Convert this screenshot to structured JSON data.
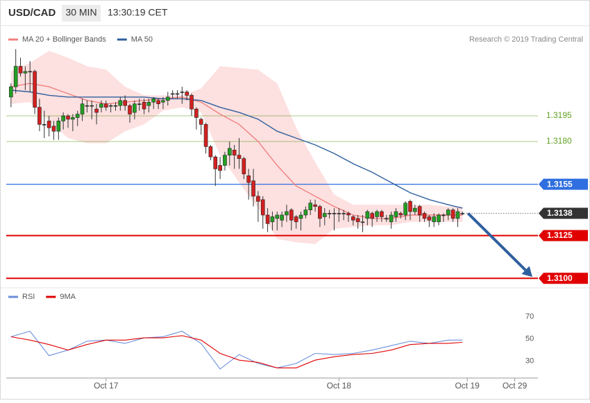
{
  "header": {
    "symbol": "USD/CAD",
    "timeframe": "30 MIN",
    "time": "13:30:19 CET"
  },
  "source": "Research © 2019 Trading Central",
  "chart_data": [
    {
      "type": "candlestick",
      "ylim": [
        1.3094,
        1.3238
      ],
      "up_color": "#22a022",
      "down_color": "#d42020",
      "candles": {
        "x": [
          0,
          1,
          2,
          3,
          4,
          5,
          6,
          7,
          8,
          9,
          10,
          11,
          12,
          13,
          14,
          15,
          16,
          17,
          18,
          19,
          20,
          21,
          22,
          23,
          24,
          25,
          26,
          27,
          28,
          29,
          30,
          31,
          32,
          33,
          34,
          35,
          36,
          37,
          38,
          39,
          40,
          41,
          42,
          43,
          44,
          45,
          46,
          47,
          48,
          49,
          50,
          51,
          52,
          53,
          54,
          55,
          56,
          57,
          58,
          59,
          60,
          61,
          62,
          63,
          64,
          65,
          66,
          67,
          68,
          69,
          70,
          71,
          72,
          73,
          74,
          75,
          76,
          77,
          78,
          79,
          80,
          81,
          82,
          83,
          84,
          85,
          86,
          87,
          88,
          89,
          90,
          91,
          92,
          93,
          94,
          95
        ],
        "open": [
          1.3206,
          1.3212,
          1.3224,
          1.322,
          1.3221,
          1.3221,
          1.32,
          1.319,
          1.3192,
          1.3189,
          1.3186,
          1.3192,
          1.3195,
          1.3193,
          1.3194,
          1.3196,
          1.3201,
          1.3201,
          1.3199,
          1.32,
          1.3202,
          1.3201,
          1.3201,
          1.3201,
          1.3204,
          1.3201,
          1.3197,
          1.3202,
          1.3203,
          1.3201,
          1.3203,
          1.3204,
          1.3203,
          1.3204,
          1.3208,
          1.3208,
          1.3209,
          1.3209,
          1.3207,
          1.3199,
          1.3193,
          1.319,
          1.3177,
          1.3171,
          1.3166,
          1.3166,
          1.3172,
          1.3175,
          1.3172,
          1.317,
          1.316,
          1.3157,
          1.3148,
          1.3146,
          1.3137,
          1.3133,
          1.3135,
          1.3134,
          1.3137,
          1.314,
          1.3136,
          1.3135,
          1.3137,
          1.314,
          1.3143,
          1.3142,
          1.3136,
          1.3138,
          1.3138,
          1.3138,
          1.3138,
          1.3138,
          1.3136,
          1.3135,
          1.3133,
          1.3135,
          1.3138,
          1.3136,
          1.3139,
          1.3135,
          1.3133,
          1.3136,
          1.3138,
          1.3137,
          1.3145,
          1.3139,
          1.3142,
          1.3138,
          1.3136,
          1.3133,
          1.3133,
          1.3137,
          1.3137,
          1.314,
          1.3135,
          1.3138
        ],
        "high": [
          1.3214,
          1.3234,
          1.3229,
          1.3224,
          1.3227,
          1.3222,
          1.3205,
          1.3198,
          1.3195,
          1.3192,
          1.3194,
          1.3197,
          1.3196,
          1.3196,
          1.3198,
          1.3205,
          1.3204,
          1.3204,
          1.3202,
          1.3204,
          1.3204,
          1.3202,
          1.3203,
          1.3206,
          1.3207,
          1.3202,
          1.3204,
          1.3205,
          1.3205,
          1.3205,
          1.3206,
          1.3205,
          1.3206,
          1.3209,
          1.321,
          1.321,
          1.3212,
          1.321,
          1.3208,
          1.32,
          1.3194,
          1.3191,
          1.3178,
          1.3172,
          1.3171,
          1.3174,
          1.318,
          1.3178,
          1.3182,
          1.3171,
          1.3164,
          1.3164,
          1.3151,
          1.3148,
          1.3141,
          1.3139,
          1.3139,
          1.3139,
          1.3143,
          1.3141,
          1.3137,
          1.3139,
          1.3142,
          1.3146,
          1.3146,
          1.3143,
          1.3141,
          1.314,
          1.3141,
          1.3141,
          1.314,
          1.3139,
          1.3137,
          1.3137,
          1.3137,
          1.314,
          1.3139,
          1.314,
          1.314,
          1.3137,
          1.3139,
          1.3141,
          1.3139,
          1.3145,
          1.3146,
          1.3143,
          1.3143,
          1.3139,
          1.3137,
          1.3138,
          1.3138,
          1.3138,
          1.3141,
          1.3141,
          1.3141,
          1.3139
        ],
        "low": [
          1.32,
          1.3208,
          1.3218,
          1.321,
          1.3209,
          1.3196,
          1.3186,
          1.3182,
          1.3183,
          1.3181,
          1.3181,
          1.3187,
          1.3188,
          1.3186,
          1.3189,
          1.3192,
          1.3197,
          1.3193,
          1.319,
          1.3197,
          1.3198,
          1.3197,
          1.3198,
          1.3198,
          1.3198,
          1.3191,
          1.3193,
          1.3198,
          1.3196,
          1.3197,
          1.3199,
          1.3199,
          1.3199,
          1.3201,
          1.3205,
          1.3205,
          1.3202,
          1.3204,
          1.3195,
          1.3187,
          1.3184,
          1.3173,
          1.3169,
          1.3154,
          1.3158,
          1.3163,
          1.3166,
          1.3164,
          1.3164,
          1.3158,
          1.3146,
          1.3142,
          1.3133,
          1.3129,
          1.3127,
          1.3128,
          1.3128,
          1.313,
          1.3133,
          1.3128,
          1.3129,
          1.3128,
          1.3135,
          1.3137,
          1.3139,
          1.313,
          1.3131,
          1.3135,
          1.3128,
          1.3133,
          1.3134,
          1.3133,
          1.3131,
          1.3129,
          1.3127,
          1.3131,
          1.313,
          1.3133,
          1.3133,
          1.3133,
          1.3129,
          1.3133,
          1.3135,
          1.3134,
          1.3134,
          1.3137,
          1.3133,
          1.3133,
          1.313,
          1.313,
          1.3131,
          1.3133,
          1.3134,
          1.3133,
          1.313,
          1.3137
        ],
        "close": [
          1.3212,
          1.3224,
          1.322,
          1.3221,
          1.3221,
          1.32,
          1.319,
          1.319,
          1.3188,
          1.3186,
          1.3192,
          1.3195,
          1.3193,
          1.3194,
          1.3196,
          1.3202,
          1.3201,
          1.3201,
          1.3197,
          1.3202,
          1.32,
          1.3201,
          1.3201,
          1.3204,
          1.3201,
          1.3196,
          1.3202,
          1.3202,
          1.3199,
          1.3203,
          1.3205,
          1.3202,
          1.3204,
          1.3206,
          1.3208,
          1.3208,
          1.3209,
          1.3207,
          1.3199,
          1.3194,
          1.319,
          1.3177,
          1.3171,
          1.3164,
          1.3163,
          1.3172,
          1.3176,
          1.3172,
          1.317,
          1.3161,
          1.3156,
          1.3148,
          1.3145,
          1.3137,
          1.3132,
          1.3136,
          1.3137,
          1.3137,
          1.3139,
          1.3134,
          1.3133,
          1.3137,
          1.314,
          1.3144,
          1.3142,
          1.3135,
          1.3138,
          1.3138,
          1.3138,
          1.3138,
          1.3138,
          1.3137,
          1.3134,
          1.3133,
          1.3133,
          1.3139,
          1.3135,
          1.3139,
          1.3136,
          1.3135,
          1.3137,
          1.3139,
          1.3137,
          1.3144,
          1.3139,
          1.3141,
          1.3137,
          1.3135,
          1.3134,
          1.3136,
          1.3137,
          1.3137,
          1.314,
          1.3135,
          1.3139,
          1.3138
        ]
      },
      "series": [
        {
          "name": "MA 20 + Bollinger Bands",
          "color": "#f08080",
          "band_color": "#fde0e0",
          "x": [
            0,
            4,
            8,
            12,
            16,
            20,
            24,
            28,
            32,
            36,
            40,
            44,
            48,
            52,
            56,
            60,
            64,
            68,
            72,
            76,
            80,
            84,
            88,
            92,
            95
          ],
          "values": [
            1.3212,
            1.3214,
            1.3212,
            1.3208,
            1.3204,
            1.3202,
            1.3203,
            1.3204,
            1.3205,
            1.3206,
            1.3203,
            1.3196,
            1.319,
            1.318,
            1.3166,
            1.3154,
            1.3148,
            1.3142,
            1.3137,
            1.3135,
            1.3135,
            1.3137,
            1.3137,
            1.3137,
            1.3137
          ],
          "upper": [
            1.3221,
            1.3226,
            1.3233,
            1.3229,
            1.3224,
            1.3222,
            1.3212,
            1.3207,
            1.3207,
            1.3207,
            1.3211,
            1.3224,
            1.3223,
            1.3222,
            1.3214,
            1.3188,
            1.3168,
            1.3149,
            1.3143,
            1.3143,
            1.3143,
            1.3143,
            1.3143,
            1.3142,
            1.3142
          ],
          "lower": [
            1.3202,
            1.3203,
            1.3192,
            1.3182,
            1.3179,
            1.3179,
            1.3186,
            1.319,
            1.3198,
            1.32,
            1.3197,
            1.3172,
            1.3156,
            1.3141,
            1.3123,
            1.3121,
            1.312,
            1.3129,
            1.313,
            1.3131,
            1.3131,
            1.3133,
            1.3133,
            1.3133,
            1.3133
          ]
        },
        {
          "name": "MA 50",
          "color": "#2f5f9e",
          "x": [
            0,
            4,
            8,
            12,
            16,
            20,
            24,
            28,
            32,
            36,
            40,
            44,
            48,
            52,
            56,
            60,
            64,
            68,
            72,
            76,
            80,
            84,
            88,
            92,
            95
          ],
          "values": [
            1.321,
            1.3209,
            1.3207,
            1.3206,
            1.3206,
            1.3206,
            1.3206,
            1.3206,
            1.3205,
            1.3205,
            1.3204,
            1.32,
            1.3197,
            1.3193,
            1.3186,
            1.3182,
            1.3178,
            1.3173,
            1.3167,
            1.3162,
            1.3156,
            1.315,
            1.3146,
            1.3143,
            1.3141
          ]
        }
      ],
      "levels": [
        {
          "value": 1.3195,
          "color": "#5fa020",
          "boxed": false
        },
        {
          "value": 1.318,
          "label": "1.3180",
          "color": "#5fa020",
          "boxed": false
        },
        {
          "value": 1.3155,
          "color": "#2f6fe0",
          "boxed": true
        },
        {
          "value": 1.3138,
          "color": "#333333",
          "boxed": true,
          "dashed": true
        },
        {
          "value": 1.3125,
          "color": "#e00000",
          "boxed": true
        },
        {
          "value": 1.31,
          "label": "1.3100",
          "color": "#e00000",
          "boxed": true
        }
      ]
    },
    {
      "type": "line",
      "ylim": [
        18,
        81
      ],
      "yticks": [
        30,
        50,
        70
      ],
      "grid": false,
      "xlim": [
        -1,
        110
      ],
      "xticks": [
        {
          "value": 20,
          "label": "Oct 17"
        },
        {
          "value": 69,
          "label": "Oct 18"
        },
        {
          "value": 96,
          "label": "Oct 19"
        },
        {
          "value": 106,
          "label": "Oct 29"
        }
      ],
      "series": [
        {
          "name": "RSI",
          "color": "#6a8fdb",
          "x": [
            0,
            4,
            8,
            12,
            16,
            20,
            24,
            28,
            32,
            36,
            40,
            44,
            48,
            52,
            56,
            60,
            64,
            68,
            72,
            76,
            80,
            84,
            88,
            92,
            95
          ],
          "values": [
            52,
            57,
            35,
            40,
            48,
            49,
            46,
            51,
            52,
            57,
            46,
            23,
            36,
            28,
            24,
            28,
            37,
            36,
            37,
            40,
            44,
            48,
            46,
            49,
            49
          ]
        },
        {
          "name": "9MA",
          "color": "#e00000",
          "x": [
            0,
            4,
            8,
            12,
            16,
            20,
            24,
            28,
            32,
            36,
            40,
            44,
            48,
            52,
            56,
            60,
            64,
            68,
            72,
            76,
            80,
            84,
            88,
            92,
            95
          ],
          "values": [
            52,
            49,
            45,
            40,
            45,
            49,
            49,
            51,
            51,
            53,
            49,
            37,
            31,
            29,
            24,
            24,
            31,
            34,
            36,
            37,
            40,
            45,
            46,
            46,
            47
          ]
        }
      ]
    }
  ]
}
